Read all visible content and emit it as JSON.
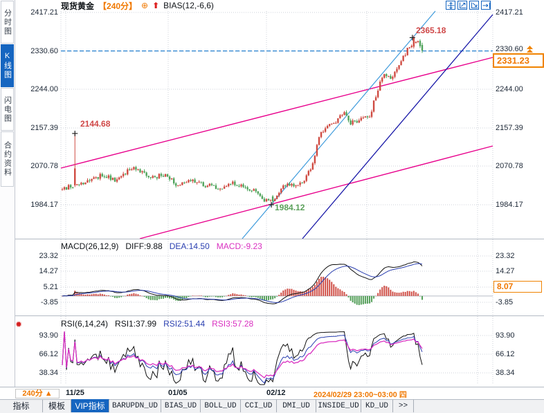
{
  "colors": {
    "accent_blue": "#1565c0",
    "orange": "#f07800",
    "up_red": "#cf4a41",
    "down_green": "#4fa35b",
    "magenta_line": "#e8008c",
    "cyan_line": "#3e9bdc",
    "navy_line": "#1818a8",
    "dashed_blue": "#2580d0"
  },
  "sidebar": {
    "items": [
      {
        "label": "分时图",
        "selected": false
      },
      {
        "label": "K线图",
        "selected": true
      },
      {
        "label": "闪电图",
        "selected": false
      },
      {
        "label": "合约资料",
        "selected": false
      }
    ]
  },
  "header": {
    "symbol": "现货黄金",
    "period": "【240分】",
    "plus_icon_glyph": "⊕",
    "up_arrow_glyph": "⬆",
    "indicator": "BIAS(12,-6,6)"
  },
  "toolbar": {
    "icons": [
      "move-tool",
      "scale-x-tool",
      "scale-y-tool",
      "pan-right-tool"
    ]
  },
  "main_chart": {
    "y_axis": [
      "2417.21",
      "2330.60",
      "2244.00",
      "2157.39",
      "2070.78",
      "1984.17"
    ],
    "current_price_badge": "2331.23",
    "annotations": {
      "spike_high": "2144.68",
      "peak_high": "2365.18",
      "swing_low": "1984.12"
    }
  },
  "macd_panel": {
    "title": "MACD(26,12,9)",
    "diff_label": "DIFF:9.88",
    "dea_label": "DEA:14.50",
    "macd_label": "MACD:-9.23",
    "y_axis": [
      "23.32",
      "14.27",
      "5.21",
      "-3.85"
    ],
    "badge": "8.07",
    "flash_icon_glyph": "✹"
  },
  "rsi_panel": {
    "title": "RSI(6,14,24)",
    "rsi1_label": "RSI1:37.99",
    "rsi2_label": "RSI2:51.44",
    "rsi3_label": "RSI3:57.28",
    "y_axis": [
      "93.90",
      "66.12",
      "38.34"
    ]
  },
  "time_axis": {
    "period_button": "240分 ▲",
    "dates": [
      "11/25",
      "01/05",
      "02/12"
    ],
    "highlight": "2024/02/29 23:00~03:00 四"
  },
  "tabs": [
    "指标",
    "模板",
    "VIP指标",
    "BARUPDN_UD",
    "BIAS_UD",
    "BOLL_UD",
    "CCI_UD",
    "DMI_UD",
    "INSIDE_UD",
    "KD_UD",
    ">>"
  ],
  "chart_data": {
    "type": "candlestick",
    "symbol": "现货黄金",
    "period": "240分",
    "y_axis_values": [
      2417.21,
      2330.6,
      2244.0,
      2157.39,
      2070.78,
      1984.17
    ],
    "x_axis_dates": [
      "11/25",
      "01/05",
      "02/12",
      "2024/02/29 23:00~03:00"
    ],
    "key_points": {
      "spike_high": 2144.68,
      "swing_low": 1984.12,
      "peak_high": 2365.18,
      "last_price": 2331.23,
      "dashed_level": 2330.6
    },
    "n_candles": 172,
    "price_waypoints": [
      [
        0,
        2018
      ],
      [
        0.02,
        2026
      ],
      [
        0.05,
        2030
      ],
      [
        0.08,
        2042
      ],
      [
        0.115,
        2052
      ],
      [
        0.15,
        2038
      ],
      [
        0.19,
        2068
      ],
      [
        0.215,
        2058
      ],
      [
        0.25,
        2045
      ],
      [
        0.285,
        2052
      ],
      [
        0.32,
        2028
      ],
      [
        0.36,
        2040
      ],
      [
        0.4,
        2028
      ],
      [
        0.44,
        2022
      ],
      [
        0.47,
        2036
      ],
      [
        0.5,
        2026
      ],
      [
        0.53,
        2018
      ],
      [
        0.555,
        1998
      ],
      [
        0.585,
        1990
      ],
      [
        0.615,
        2030
      ],
      [
        0.65,
        2026
      ],
      [
        0.675,
        2040
      ],
      [
        0.7,
        2082
      ],
      [
        0.715,
        2148
      ],
      [
        0.74,
        2160
      ],
      [
        0.76,
        2172
      ],
      [
        0.78,
        2192
      ],
      [
        0.8,
        2168
      ],
      [
        0.83,
        2178
      ],
      [
        0.855,
        2185
      ],
      [
        0.875,
        2240
      ],
      [
        0.895,
        2282
      ],
      [
        0.915,
        2270
      ],
      [
        0.935,
        2298
      ],
      [
        0.955,
        2328
      ],
      [
        0.975,
        2352
      ],
      [
        0.99,
        2356
      ],
      [
        1,
        2331.23
      ]
    ],
    "indicators": {
      "macd": {
        "params": [
          26,
          12,
          9
        ],
        "diff": 9.88,
        "dea": 14.5,
        "macd": -9.23,
        "axis": [
          23.32,
          14.27,
          5.21,
          -3.85
        ],
        "last_value": 8.07
      },
      "rsi": {
        "params": [
          6,
          14,
          24
        ],
        "rsi1": 37.99,
        "rsi2": 51.44,
        "rsi3": 57.28,
        "axis": [
          93.9,
          66.12,
          38.34
        ]
      }
    },
    "overlays": {
      "dashed_level": 2330.6,
      "trend_lines": [
        "magenta-channel-upper",
        "magenta-channel-lower",
        "cyan-support-line",
        "navy-trend-line"
      ]
    }
  }
}
